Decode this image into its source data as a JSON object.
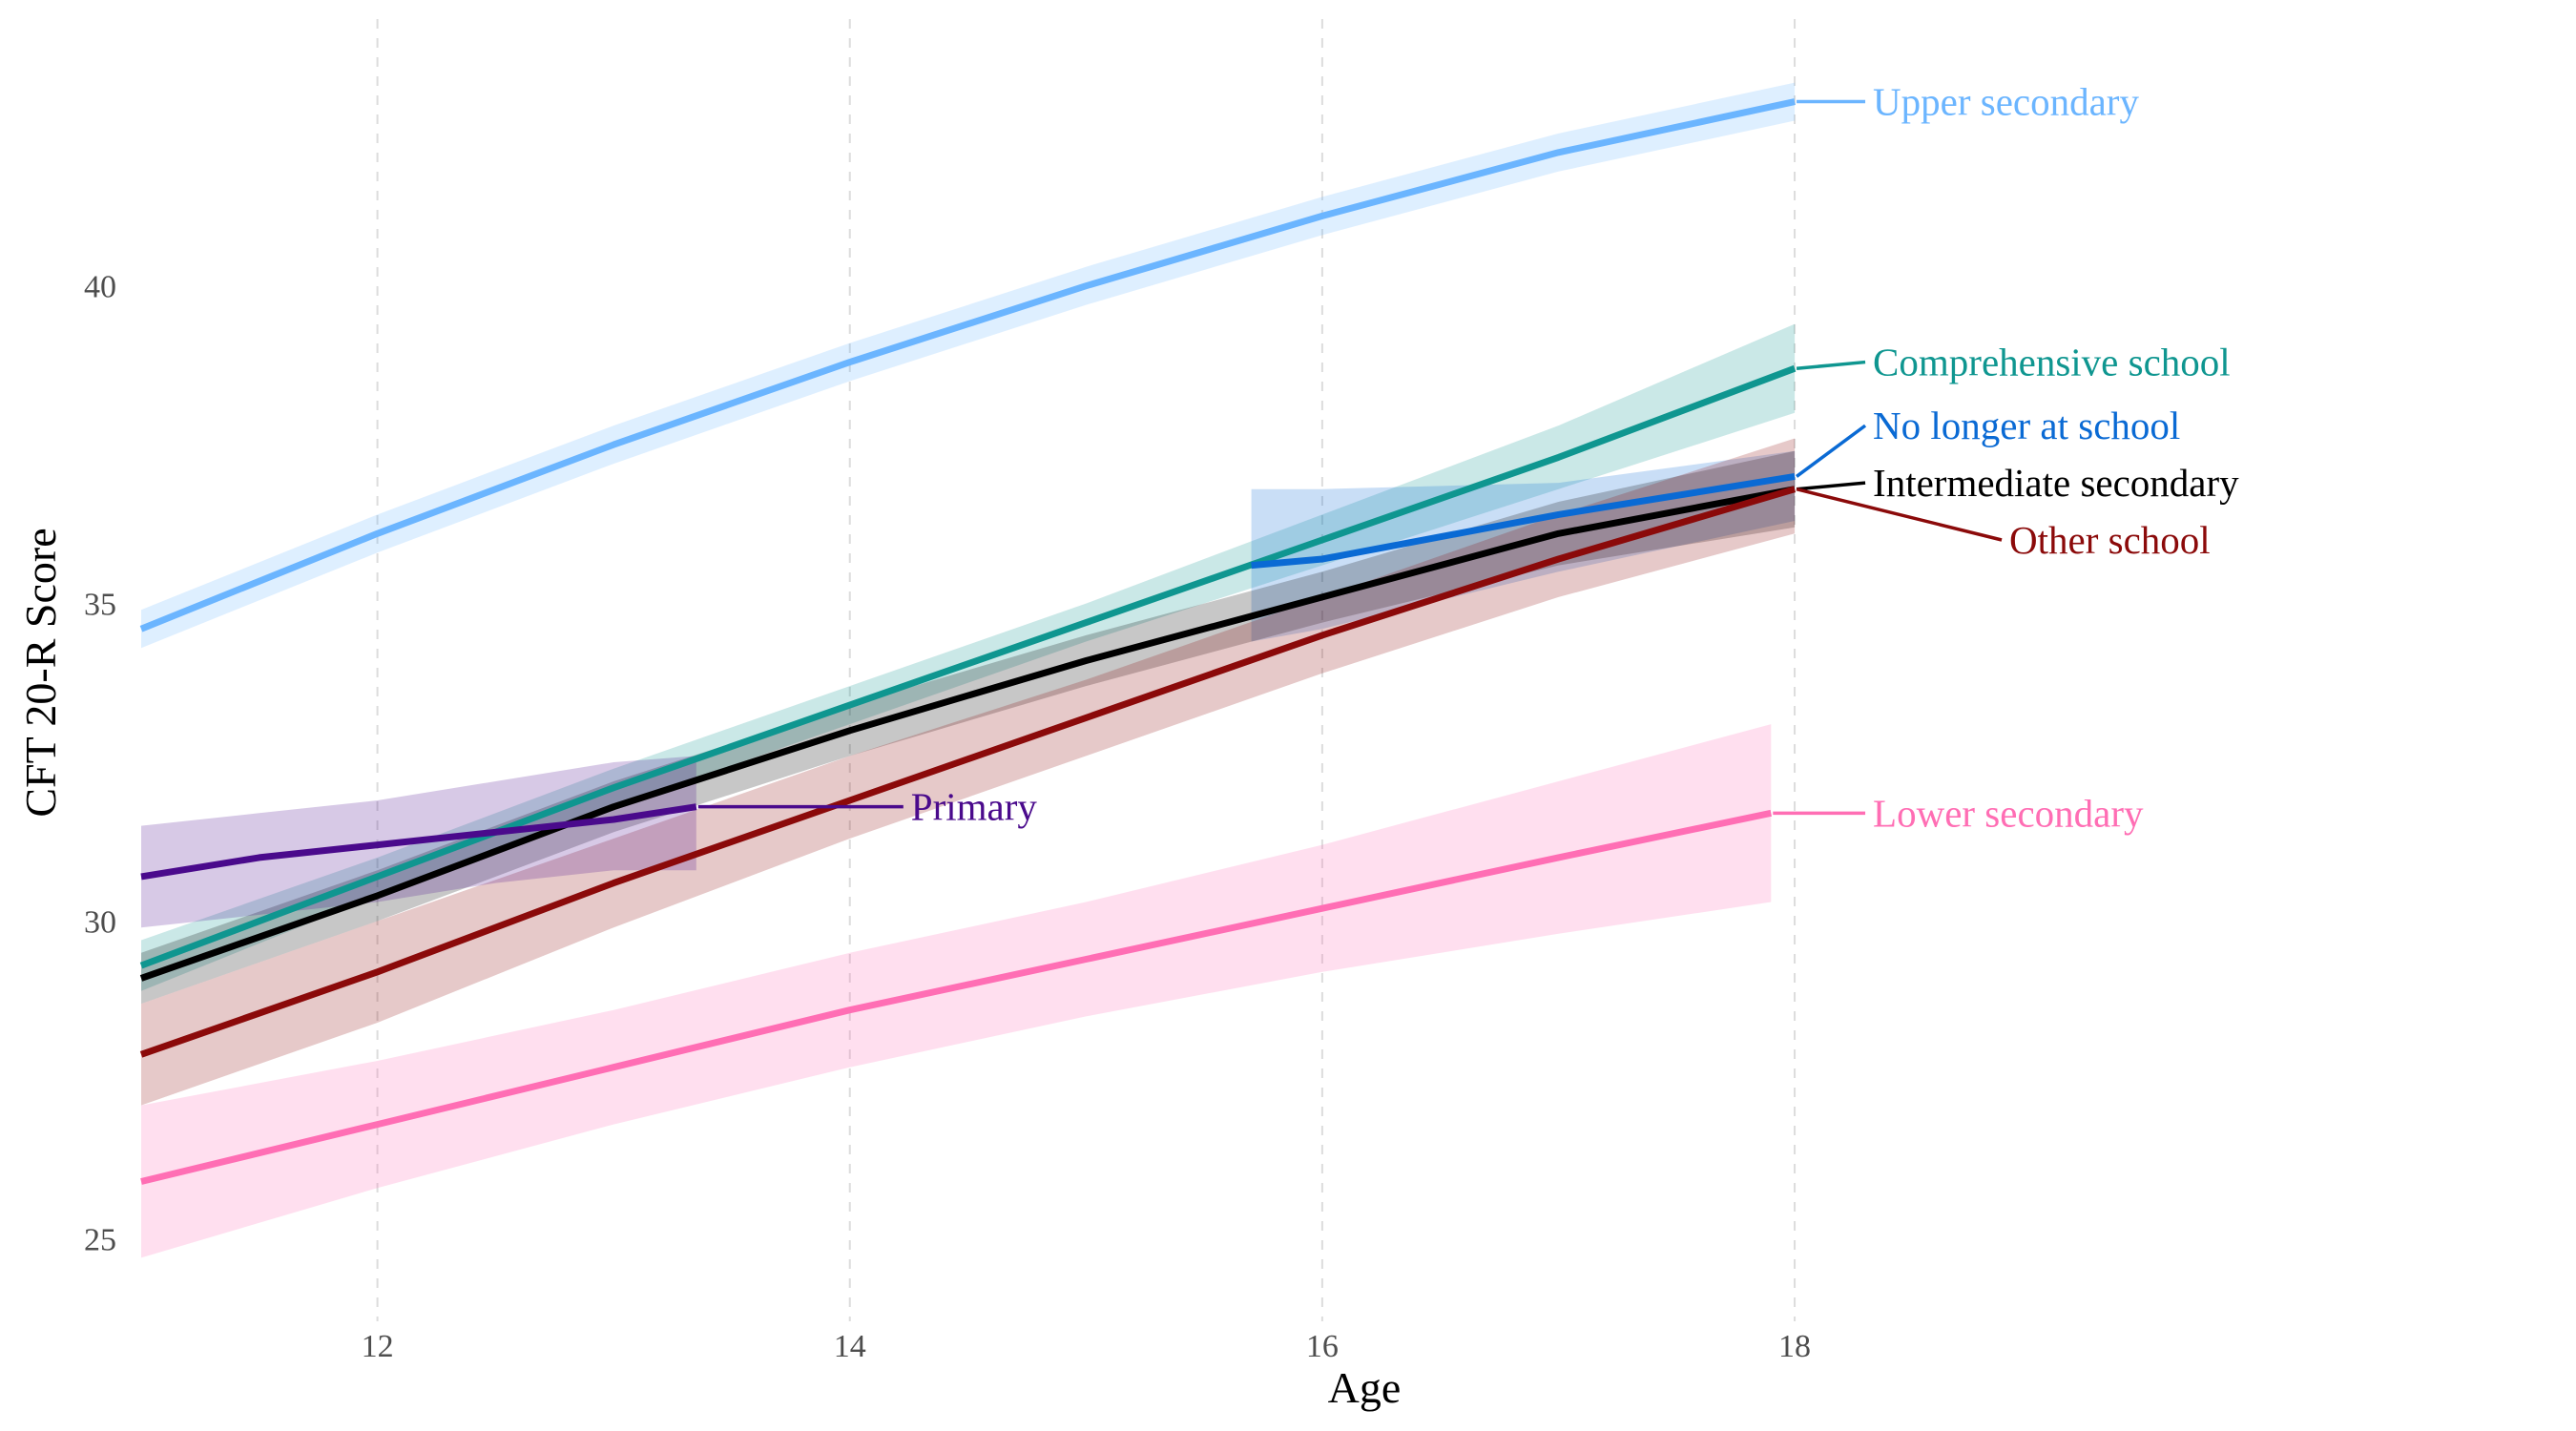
{
  "chart_data": {
    "type": "line",
    "title": "",
    "xlabel": "Age",
    "ylabel": "CFT 20-R Score",
    "xlim": [
      11,
      20.5
    ],
    "ylim": [
      23.7,
      44.2
    ],
    "xticks": [
      12,
      14,
      16,
      18
    ],
    "yticks": [
      25,
      30,
      35,
      40
    ],
    "grid": {
      "vertical_major": true,
      "dashed": true,
      "horizontal": false
    },
    "legend": "direct labels at the right end of each line",
    "series": [
      {
        "name": "Upper secondary",
        "color": "#6BB5FF",
        "x": [
          11,
          12,
          13,
          14,
          15,
          16,
          17,
          18
        ],
        "y": [
          34.6,
          36.1,
          37.5,
          38.8,
          40.0,
          41.1,
          42.1,
          42.9
        ],
        "lower": [
          34.3,
          35.8,
          37.2,
          38.5,
          39.7,
          40.8,
          41.8,
          42.6
        ],
        "upper": [
          34.9,
          36.4,
          37.8,
          39.1,
          40.3,
          41.4,
          42.4,
          43.2
        ],
        "label_y": 42.9
      },
      {
        "name": "Comprehensive school",
        "color": "#0F9690",
        "x": [
          11,
          12,
          13,
          14,
          15,
          16,
          17,
          18
        ],
        "y": [
          29.3,
          30.7,
          32.1,
          33.4,
          34.7,
          36.0,
          37.3,
          38.7
        ],
        "lower": [
          28.9,
          30.4,
          31.8,
          33.1,
          34.4,
          35.6,
          36.8,
          38.0
        ],
        "upper": [
          29.7,
          31.0,
          32.4,
          33.7,
          35.0,
          36.4,
          37.8,
          39.4
        ],
        "label_y": 38.8
      },
      {
        "name": "No longer at school",
        "color": "#0A6AD4",
        "x": [
          15.7,
          16,
          17,
          18
        ],
        "y": [
          35.6,
          35.7,
          36.4,
          37.0
        ],
        "lower": [
          34.4,
          34.6,
          35.5,
          36.3
        ],
        "upper": [
          36.8,
          36.8,
          36.9,
          37.4
        ],
        "label_y": 37.8
      },
      {
        "name": "Intermediate secondary",
        "color": "#000000",
        "x": [
          11,
          12,
          13,
          14,
          15,
          16,
          17,
          18
        ],
        "y": [
          29.1,
          30.4,
          31.8,
          33.0,
          34.1,
          35.1,
          36.1,
          36.8
        ],
        "lower": [
          28.7,
          30.0,
          31.4,
          32.6,
          33.7,
          34.7,
          35.6,
          36.2
        ],
        "upper": [
          29.5,
          30.8,
          32.2,
          33.4,
          34.5,
          35.5,
          36.6,
          37.4
        ],
        "label_y": 36.9
      },
      {
        "name": "Other school",
        "color": "#8B0A0A",
        "x": [
          11,
          12,
          13,
          14,
          15,
          16,
          17,
          18
        ],
        "y": [
          27.9,
          29.2,
          30.6,
          31.9,
          33.2,
          34.5,
          35.7,
          36.8
        ],
        "lower": [
          27.1,
          28.4,
          29.9,
          31.3,
          32.6,
          33.9,
          35.1,
          36.1
        ],
        "upper": [
          28.7,
          30.0,
          31.3,
          32.6,
          33.8,
          35.1,
          36.4,
          37.6
        ],
        "label_y": 36.0
      },
      {
        "name": "Primary",
        "color": "#4A0A8C",
        "x": [
          11,
          11.5,
          12,
          12.5,
          13,
          13.35
        ],
        "y": [
          30.7,
          31.0,
          31.2,
          31.4,
          31.6,
          31.8
        ],
        "lower": [
          29.9,
          30.1,
          30.3,
          30.6,
          30.8,
          30.8
        ],
        "upper": [
          31.5,
          31.7,
          31.9,
          32.2,
          32.5,
          32.6
        ],
        "label_y": 31.8
      },
      {
        "name": "Lower secondary",
        "color": "#FF6EB4",
        "x": [
          11,
          12,
          13,
          14,
          15,
          16,
          17,
          17.9
        ],
        "y": [
          25.9,
          26.8,
          27.7,
          28.6,
          29.4,
          30.2,
          31.0,
          31.7
        ],
        "lower": [
          24.7,
          25.8,
          26.8,
          27.7,
          28.5,
          29.2,
          29.8,
          30.3
        ],
        "upper": [
          27.1,
          27.8,
          28.6,
          29.5,
          30.3,
          31.2,
          32.2,
          33.1
        ],
        "label_y": 31.7
      }
    ]
  }
}
